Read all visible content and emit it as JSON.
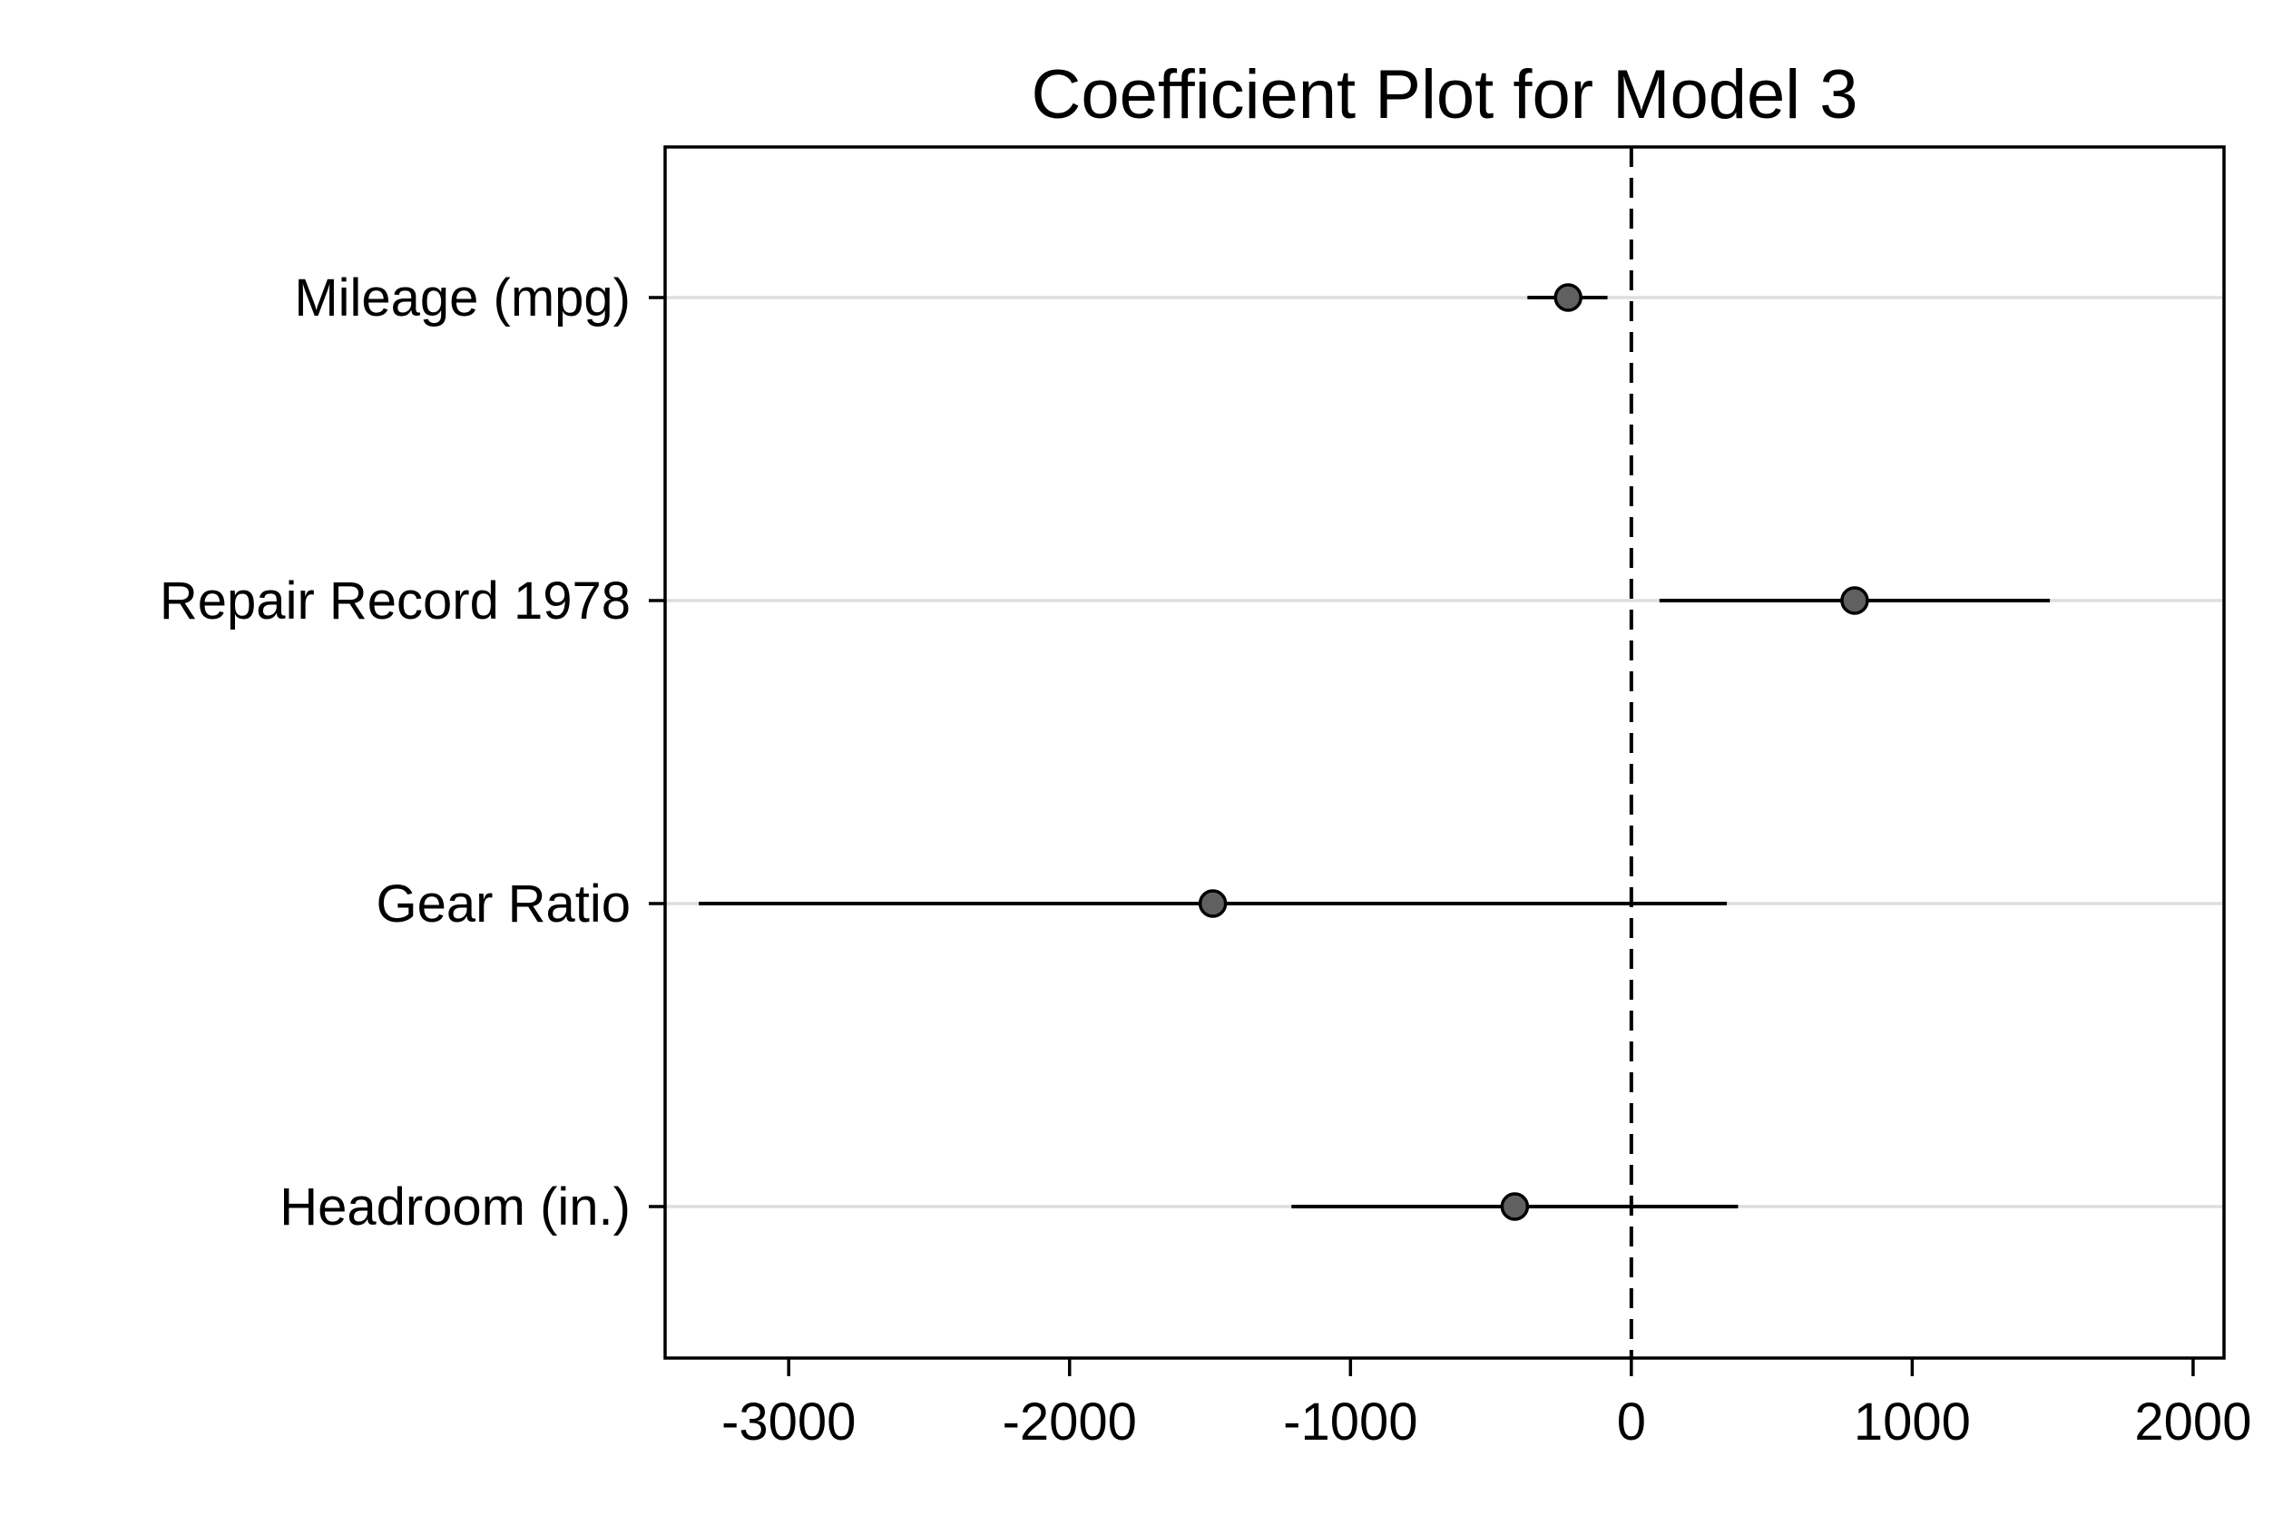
{
  "chart_data": {
    "type": "scatter",
    "title": "Coefficient Plot for Model 3",
    "xlabel": "",
    "ylabel": "",
    "xlim": [
      -3440,
      2110
    ],
    "x_ticks": [
      -3000,
      -2000,
      -1000,
      0,
      1000,
      2000
    ],
    "reference_line": {
      "x": 0,
      "style": "dashed"
    },
    "grid": {
      "horizontal_at_categories": true,
      "vertical": false
    },
    "legend": "none",
    "categories": [
      "Mileage (mpg)",
      "Repair Record 1978",
      "Gear Ratio",
      "Headroom (in.)"
    ],
    "series": [
      {
        "values": [
          {
            "label": "Mileage (mpg)",
            "estimate": -225,
            "ci_low": -370,
            "ci_high": -85
          },
          {
            "label": "Repair Record 1978",
            "estimate": 795,
            "ci_low": 100,
            "ci_high": 1490
          },
          {
            "label": "Gear Ratio",
            "estimate": -1490,
            "ci_low": -3320,
            "ci_high": 340
          },
          {
            "label": "Headroom (in.)",
            "estimate": -415,
            "ci_low": -1210,
            "ci_high": 380
          }
        ]
      }
    ],
    "colors": {
      "marker_fill": "#606060",
      "marker_stroke": "#000000",
      "ci_line": "#000000",
      "gridline": "#dedede",
      "frame": "#000000"
    }
  }
}
